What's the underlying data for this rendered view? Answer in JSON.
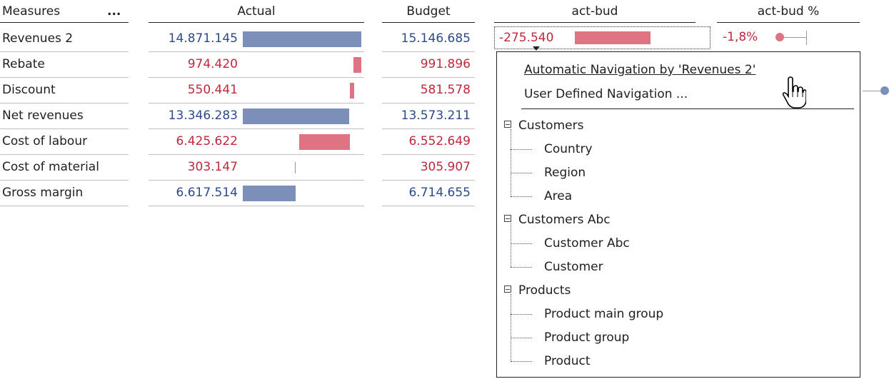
{
  "headers": {
    "measures": "Measures",
    "more": "...",
    "actual": "Actual",
    "budget": "Budget",
    "act_bud": "act-bud",
    "act_bud_pct": "act-bud %"
  },
  "rows": [
    {
      "label": "Revenues 2",
      "actual": "14.871.145",
      "budget": "15.146.685",
      "sign": "pos",
      "actual_value": 14871145
    },
    {
      "label": "Rebate",
      "actual": "974.420",
      "budget": "991.896",
      "sign": "neg",
      "actual_value": 974420
    },
    {
      "label": "Discount",
      "actual": "550.441",
      "budget": "581.578",
      "sign": "neg",
      "actual_value": 550441
    },
    {
      "label": "Net revenues",
      "actual": "13.346.283",
      "budget": "13.573.211",
      "sign": "pos",
      "actual_value": 13346283
    },
    {
      "label": "Cost of labour",
      "actual": "6.425.622",
      "budget": "6.552.649",
      "sign": "neg",
      "actual_value": 6425622
    },
    {
      "label": "Cost of material",
      "actual": "303.147",
      "budget": "305.907",
      "sign": "neg",
      "actual_value": 303147
    },
    {
      "label": "Gross margin",
      "actual": "6.617.514",
      "budget": "6.714.655",
      "sign": "pos",
      "actual_value": 6617514
    }
  ],
  "variance": {
    "act_bud": "-275.540",
    "act_bud_pct": "-1,8%"
  },
  "colors": {
    "positive_text": "#2b4a8b",
    "negative_text": "#c0283c",
    "positive_bar": "#7b8fb8",
    "negative_bar": "#df7382"
  },
  "menu": {
    "items": [
      "Automatic Navigation by 'Revenues 2'",
      "User Defined Navigation ..."
    ],
    "tree": [
      {
        "group": "Customers",
        "children": [
          "Country",
          "Region",
          "Area"
        ]
      },
      {
        "group": "Customers Abc",
        "children": [
          "Customer Abc",
          "Customer"
        ]
      },
      {
        "group": "Products",
        "children": [
          "Product main group",
          "Product group",
          "Product"
        ]
      }
    ]
  },
  "icons": {
    "cursor": "hand-pointer-icon",
    "dropdown": "caret-down-icon",
    "collapse": "tree-collapse-icon"
  }
}
